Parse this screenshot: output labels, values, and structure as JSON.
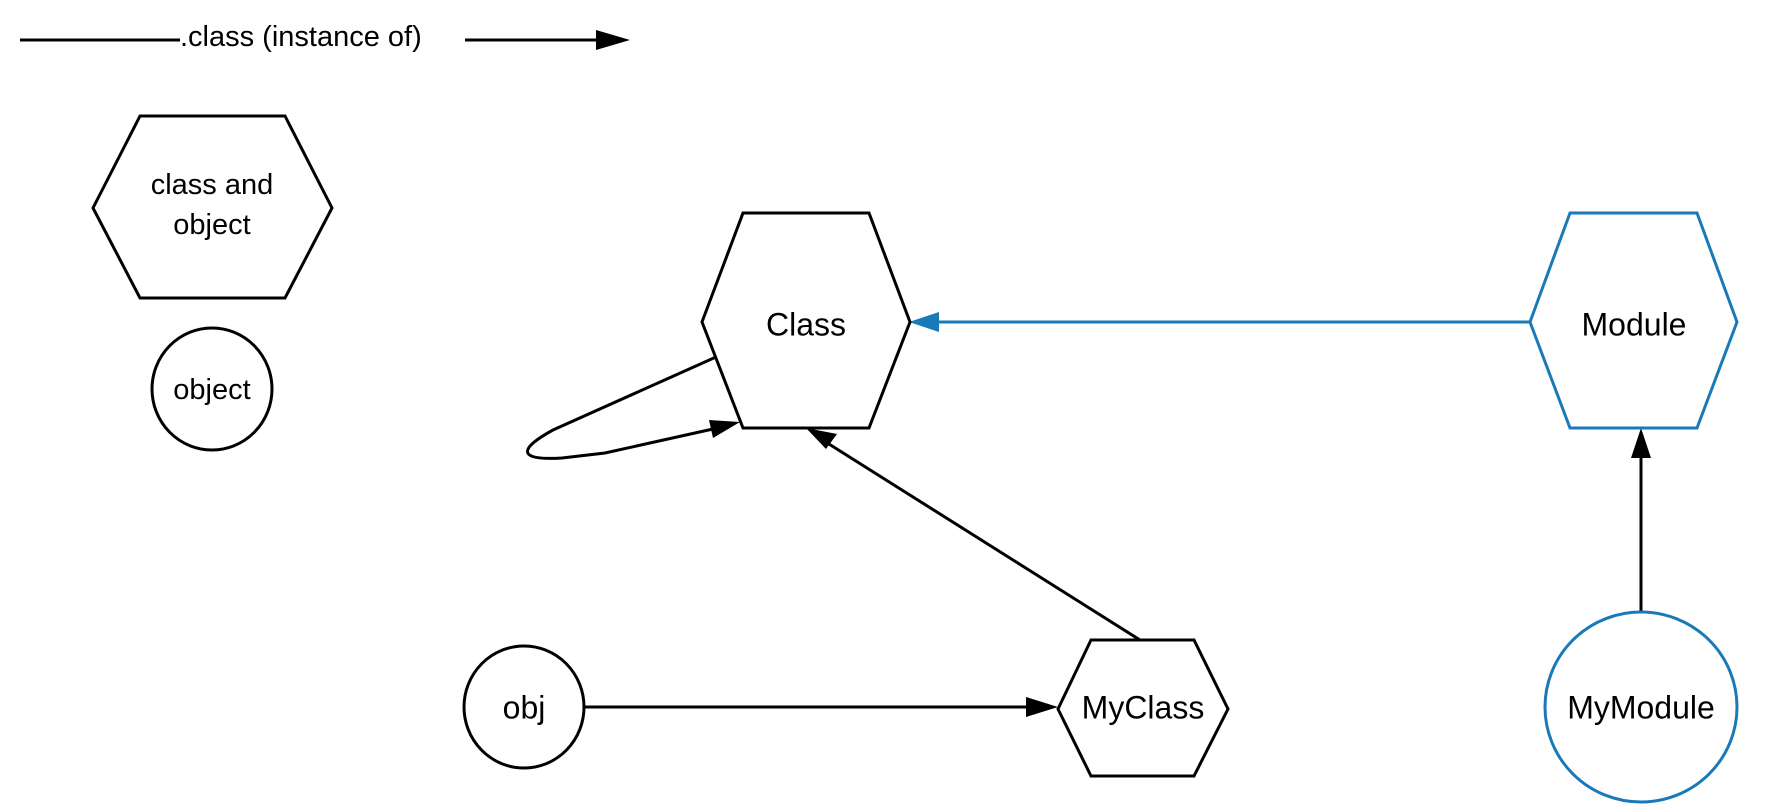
{
  "legend": {
    "edge_label": ".class (instance of)",
    "class_and_object_line1": "class and",
    "class_and_object_line2": "object",
    "object_label": "object"
  },
  "nodes": {
    "class": "Class",
    "module": "Module",
    "myclass": "MyClass",
    "obj": "obj",
    "mymodule": "MyModule"
  },
  "colors": {
    "default": "#000000",
    "highlight": "#1a7ab8",
    "background": "#ffffff"
  }
}
